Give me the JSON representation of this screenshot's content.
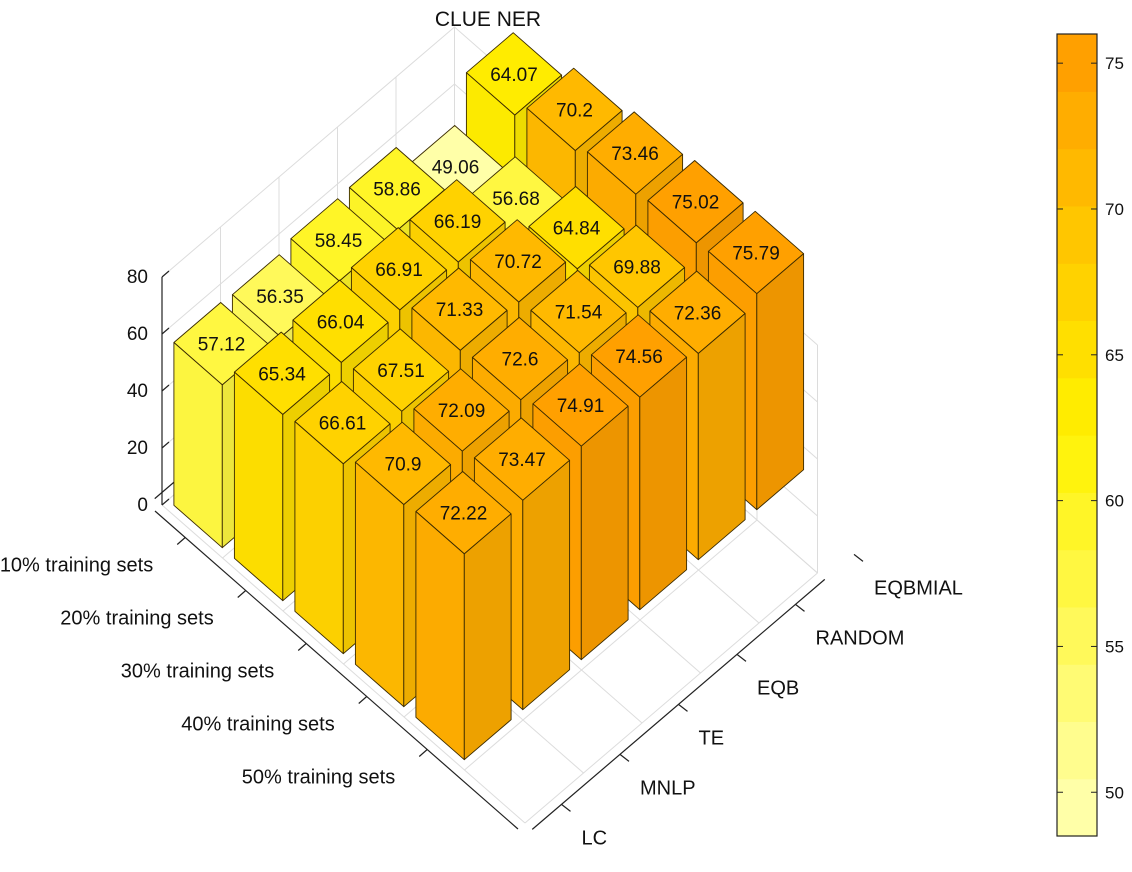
{
  "chart_data": {
    "type": "bar3d",
    "title": "CLUE NER",
    "rows": [
      "10% training sets",
      "20% training sets",
      "30% training sets",
      "40% training sets",
      "50% training sets"
    ],
    "columns": [
      "LC",
      "MNLP",
      "TE",
      "EQB",
      "RANDOM",
      "EQBMIAL"
    ],
    "values": [
      [
        57.12,
        56.35,
        58.45,
        58.86,
        49.06,
        64.07
      ],
      [
        65.34,
        66.04,
        66.91,
        66.19,
        56.68,
        70.2
      ],
      [
        66.61,
        67.51,
        71.33,
        70.72,
        64.84,
        73.46
      ],
      [
        70.9,
        72.09,
        72.6,
        71.54,
        69.88,
        75.02
      ],
      [
        72.22,
        73.47,
        74.91,
        74.56,
        72.36,
        75.79
      ]
    ],
    "zlim": [
      0,
      80
    ],
    "z_ticks": [
      "0",
      "20",
      "40",
      "60",
      "80"
    ],
    "colorbar": {
      "min": 48.5,
      "max": 76,
      "ticks": [
        "50",
        "55",
        "60",
        "65",
        "70",
        "75"
      ],
      "colormap": "autumn-reversed-light",
      "low_color": "#FFFFA8",
      "mid_color": "#FFF200",
      "high_color": "#FFA000",
      "bands": 14
    },
    "grid": true
  }
}
